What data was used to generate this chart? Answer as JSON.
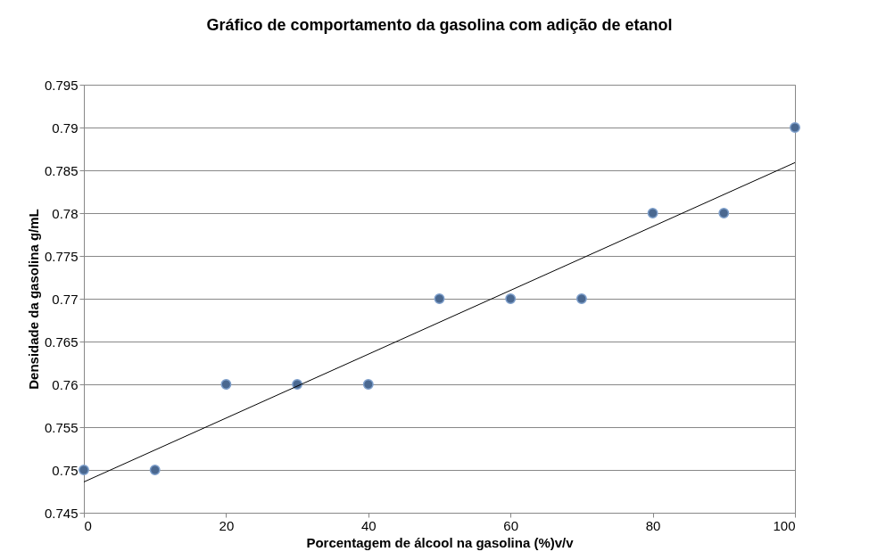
{
  "chart_data": {
    "type": "scatter",
    "title": "Gráfico de comportamento da gasolina com  adição de etanol",
    "xlabel": "Porcentagem de álcool na gasolina (%)v/v",
    "ylabel": "Densidade da gasolina g/mL",
    "x": [
      0,
      10,
      20,
      30,
      40,
      50,
      60,
      70,
      80,
      90,
      100
    ],
    "series": [
      {
        "color": "#4a6890",
        "values": [
          0.75,
          0.75,
          0.76,
          0.76,
          0.76,
          0.77,
          0.77,
          0.77,
          0.78,
          0.78,
          0.79
        ],
        "marker": "circle"
      },
      {
        "type": "line",
        "color": "#000000",
        "x": [
          0,
          100
        ],
        "values": [
          0.7486,
          0.7859
        ],
        "marker": "none"
      }
    ],
    "xlim": [
      0,
      100
    ],
    "xticks": [
      0,
      20,
      40,
      60,
      80,
      100
    ],
    "ylim": [
      0.745,
      0.795
    ],
    "yticks": [
      0.745,
      0.75,
      0.755,
      0.76,
      0.765,
      0.77,
      0.775,
      0.78,
      0.785,
      0.79,
      0.795
    ],
    "grid": "y"
  }
}
